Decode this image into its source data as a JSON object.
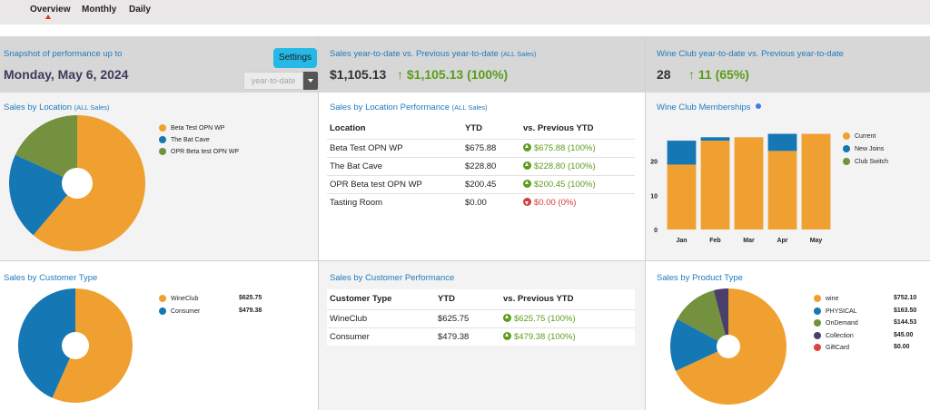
{
  "nav": {
    "tabs": [
      "Overview",
      "Monthly",
      "Daily"
    ],
    "active": "Overview"
  },
  "snapshot": {
    "title": "Snapshot of performance up to",
    "date": "Monday, May 6, 2024",
    "settings_label": "Settings",
    "period_value": "year-to-date"
  },
  "sales_ytd": {
    "title": "Sales year-to-date vs. Previous year-to-date",
    "qualifier": "(ALL Sales)",
    "value": "$1,105.13",
    "change": "$1,105.13 (100%)"
  },
  "wineclub_ytd": {
    "title": "Wine Club year-to-date vs. Previous year-to-date",
    "value": "28",
    "change": "11 (65%)"
  },
  "sales_by_location": {
    "title": "Sales by Location",
    "qualifier": "(ALL Sales)",
    "legend": [
      "Beta Test OPN WP",
      "The Bat Cave",
      "OPR Beta test OPN WP"
    ]
  },
  "location_perf": {
    "title": "Sales by Location Performance",
    "qualifier": "(ALL Sales)",
    "headers": [
      "Location",
      "YTD",
      "vs. Previous YTD"
    ],
    "rows": [
      {
        "location": "Beta Test OPN WP",
        "ytd": "$675.88",
        "change": "$675.88 (100%)",
        "dir": "up"
      },
      {
        "location": "The Bat Cave",
        "ytd": "$228.80",
        "change": "$228.80 (100%)",
        "dir": "up"
      },
      {
        "location": "OPR Beta test OPN WP",
        "ytd": "$200.45",
        "change": "$200.45 (100%)",
        "dir": "up"
      },
      {
        "location": "Tasting Room",
        "ytd": "$0.00",
        "change": "$0.00 (0%)",
        "dir": "down"
      }
    ]
  },
  "memberships": {
    "title": "Wine Club Memberships",
    "legend": [
      "Current",
      "New Joins",
      "Club Switch"
    ]
  },
  "customer_type": {
    "title": "Sales by Customer Type",
    "legend": [
      {
        "name": "WineClub",
        "value": "$625.75"
      },
      {
        "name": "Consumer",
        "value": "$479.38"
      }
    ]
  },
  "customer_perf": {
    "title": "Sales by Customer Performance",
    "headers": [
      "Customer Type",
      "YTD",
      "vs. Previous YTD"
    ],
    "rows": [
      {
        "type": "WineClub",
        "ytd": "$625.75",
        "change": "$625.75 (100%)"
      },
      {
        "type": "Consumer",
        "ytd": "$479.38",
        "change": "$479.38 (100%)"
      }
    ]
  },
  "product_type": {
    "title": "Sales by Product Type",
    "legend": [
      {
        "name": "wine",
        "value": "$752.10"
      },
      {
        "name": "PHYSICAL",
        "value": "$163.50"
      },
      {
        "name": "OnDemand",
        "value": "$144.53"
      },
      {
        "name": "Collection",
        "value": "$45.00"
      },
      {
        "name": "GiftCard",
        "value": "$0.00"
      }
    ]
  },
  "colors": {
    "orange": "#f0a030",
    "blue": "#1577b3",
    "olive": "#73913e",
    "purple": "#4a3f6b",
    "red": "#e04040",
    "accent": "#1f7bbf",
    "green": "#5b9c1a"
  },
  "chart_data": [
    {
      "type": "pie",
      "title": "Sales by Location",
      "categories": [
        "Beta Test OPN WP",
        "The Bat Cave",
        "OPR Beta test OPN WP"
      ],
      "values": [
        675.88,
        228.8,
        200.45
      ]
    },
    {
      "type": "bar",
      "title": "Wine Club Memberships",
      "categories": [
        "Jan",
        "Feb",
        "Mar",
        "Apr",
        "May"
      ],
      "yticks": [
        0,
        10,
        20
      ],
      "ylim": [
        0,
        30
      ],
      "series": [
        {
          "name": "Current",
          "values": [
            19,
            26,
            27,
            23,
            28
          ]
        },
        {
          "name": "New Joins",
          "values": [
            7,
            1,
            0,
            5,
            0
          ]
        },
        {
          "name": "Club Switch",
          "values": [
            0,
            0,
            0,
            0,
            0
          ]
        }
      ]
    },
    {
      "type": "pie",
      "title": "Sales by Customer Type",
      "categories": [
        "WineClub",
        "Consumer"
      ],
      "values": [
        625.75,
        479.38
      ]
    },
    {
      "type": "pie",
      "title": "Sales by Product Type",
      "categories": [
        "wine",
        "PHYSICAL",
        "OnDemand",
        "Collection",
        "GiftCard"
      ],
      "values": [
        752.1,
        163.5,
        144.53,
        45.0,
        0.0
      ]
    }
  ]
}
